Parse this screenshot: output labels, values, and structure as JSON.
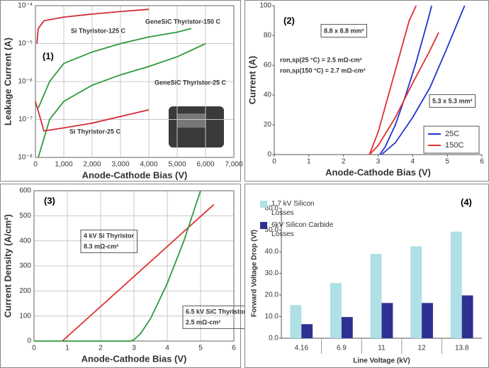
{
  "chart_data": [
    {
      "type": "line",
      "panel_label": "(1)",
      "x_label": "Anode-Cathode Bias (V)",
      "y_label": "Leakage Current (A)",
      "xlim": [
        0,
        7000
      ],
      "xticks": [
        0,
        {
          "value": 1000,
          "label": "1,000"
        },
        {
          "value": 2000,
          "label": "2,000"
        },
        {
          "value": 3000,
          "label": "3,000"
        },
        {
          "value": 4000,
          "label": "4,000"
        },
        {
          "value": 5000,
          "label": "5,000"
        },
        {
          "value": 6000,
          "label": "6,000"
        },
        {
          "value": 7000,
          "label": "7,000"
        }
      ],
      "ylim": [
        1e-08,
        0.0001
      ],
      "log_y": true,
      "yticks": [
        {
          "value": 1e-08,
          "label": "10⁻⁸"
        },
        {
          "value": 1e-07,
          "label": "10⁻⁷"
        },
        {
          "value": 1e-06,
          "label": "10⁻⁶"
        },
        {
          "value": 1e-05,
          "label": "10⁻⁵"
        },
        {
          "value": 0.0001,
          "label": "10⁻⁴"
        }
      ],
      "grid": true,
      "series": [
        {
          "name": "Si Thyristor-125 C",
          "color": "#d42a3a",
          "x": [
            50,
            100,
            300,
            1000,
            2000,
            3000,
            4000
          ],
          "values": [
            1e-05,
            2.5e-05,
            4e-05,
            5e-05,
            6e-05,
            7e-05,
            8e-05
          ]
        },
        {
          "name": "GeneSiC Thyristor-150 C",
          "color": "#2e9a3a",
          "x": [
            100,
            500,
            1000,
            2000,
            3000,
            4000,
            5000,
            5500
          ],
          "values": [
            2e-07,
            1e-06,
            3e-06,
            6e-06,
            1e-05,
            1.5e-05,
            2e-05,
            2.5e-05
          ]
        },
        {
          "name": "GeneSiC Thyristor-25 C",
          "color": "#2e9a3a",
          "x": [
            100,
            500,
            1000,
            2000,
            3000,
            4000,
            5000,
            6000
          ],
          "values": [
            1e-08,
            1e-07,
            3e-07,
            8e-07,
            1.5e-06,
            2.5e-06,
            4.5e-06,
            1e-05
          ]
        },
        {
          "name": "Si Thyristor-25 C",
          "color": "#d42a3a",
          "x": [
            0,
            300,
            1000,
            2000,
            3000,
            4000
          ],
          "values": [
            3e-07,
            5e-08,
            6e-08,
            8e-08,
            1.2e-07,
            1.8e-07
          ]
        }
      ]
    },
    {
      "type": "line",
      "panel_label": "(2)",
      "x_label": "Anode-Cathode Bias (V)",
      "y_label": "Current (A)",
      "xlim": [
        0,
        6
      ],
      "xticks": [
        0,
        1,
        2,
        3,
        4,
        5,
        6
      ],
      "ylim": [
        0,
        100
      ],
      "yticks": [
        0,
        20,
        40,
        60,
        80,
        100
      ],
      "grid": false,
      "legend": "lower right",
      "annotations": [
        {
          "text": "8.8 x 8.8 mm²",
          "color": "#000000"
        },
        {
          "text": "ron,sp(25 °C) = 2.5 mΩ-cm²",
          "color": "#1f4fa8"
        },
        {
          "text": "ron,sp(150 °C) = 2.7 mΩ-cm²",
          "color": "#e03030"
        },
        {
          "text": "5.3 x 5.3 mm²",
          "color": "#000000"
        }
      ],
      "series": [
        {
          "name": "25C",
          "color": "#2233cc",
          "curves": [
            {
              "x": [
                3.05,
                3.2,
                3.5,
                3.8,
                4.1,
                4.4,
                4.55
              ],
              "values": [
                0,
                5,
                20,
                40,
                62,
                87,
                100
              ]
            },
            {
              "x": [
                3.1,
                3.5,
                4,
                4.5,
                5,
                5.5
              ],
              "values": [
                0,
                8,
                25,
                45,
                72,
                100
              ]
            }
          ]
        },
        {
          "name": "150C",
          "color": "#e03030",
          "curves": [
            {
              "x": [
                2.75,
                3.0,
                3.3,
                3.6,
                3.9,
                4.1
              ],
              "values": [
                0,
                15,
                40,
                65,
                90,
                100
              ]
            },
            {
              "x": [
                2.75,
                3,
                3.5,
                4,
                4.5,
                4.75
              ],
              "values": [
                0,
                6,
                25,
                48,
                70,
                82
              ]
            }
          ]
        }
      ]
    },
    {
      "type": "line",
      "panel_label": "(3)",
      "x_label": "Anode-Cathode Bias (V)",
      "y_label": "Current Density (A/cm²)",
      "xlim": [
        0,
        6
      ],
      "xticks": [
        0,
        1,
        2,
        3,
        4,
        5,
        6
      ],
      "ylim": [
        0,
        600
      ],
      "yticks": [
        0,
        100,
        200,
        300,
        400,
        500,
        600
      ],
      "grid": true,
      "annotations": [
        {
          "text": "8.3 mΩ-cm²",
          "color": "#e03030"
        },
        {
          "text": "2.5 mΩ-cm²",
          "color": "#2e9a3a"
        }
      ],
      "series": [
        {
          "name": "4 kV Si Thyristor",
          "color": "#e03030",
          "x": [
            0.85,
            5.4
          ],
          "values": [
            0,
            545
          ]
        },
        {
          "name": "6.5 kV SiC Thyristor",
          "color": "#2e9a3a",
          "x": [
            0,
            2.9,
            3.0,
            3.2,
            3.5,
            4,
            4.5,
            5
          ],
          "values": [
            0,
            0,
            5,
            30,
            90,
            230,
            400,
            600
          ]
        }
      ]
    },
    {
      "type": "bar",
      "panel_label": "(4)",
      "x_label": "Line Voltage (kV)",
      "y_label": "Forward Voltage Drop (Vf)",
      "categories": [
        "4.16",
        "6.9",
        "11",
        "12",
        "13.8"
      ],
      "ylim": [
        0,
        60
      ],
      "yticks": [
        {
          "value": 0,
          "label": "0.0"
        },
        {
          "value": 10,
          "label": "10.0"
        },
        {
          "value": 20,
          "label": "20.0"
        },
        {
          "value": 30,
          "label": "30.0"
        },
        {
          "value": 40,
          "label": "40.0"
        },
        {
          "value": 50,
          "label": "50.0"
        },
        {
          "value": 60,
          "label": "60.0"
        }
      ],
      "grid": false,
      "legend": "upper left",
      "series": [
        {
          "name": "1.7 kV Silicon Losses",
          "color": "#aee0e6",
          "values": [
            15.3,
            25.5,
            39,
            42.5,
            49.3
          ]
        },
        {
          "name": "6kV Silicon Carbide Losses",
          "color": "#2e3192",
          "values": [
            6.5,
            9.8,
            16.3,
            16.3,
            19.8
          ]
        }
      ]
    }
  ]
}
